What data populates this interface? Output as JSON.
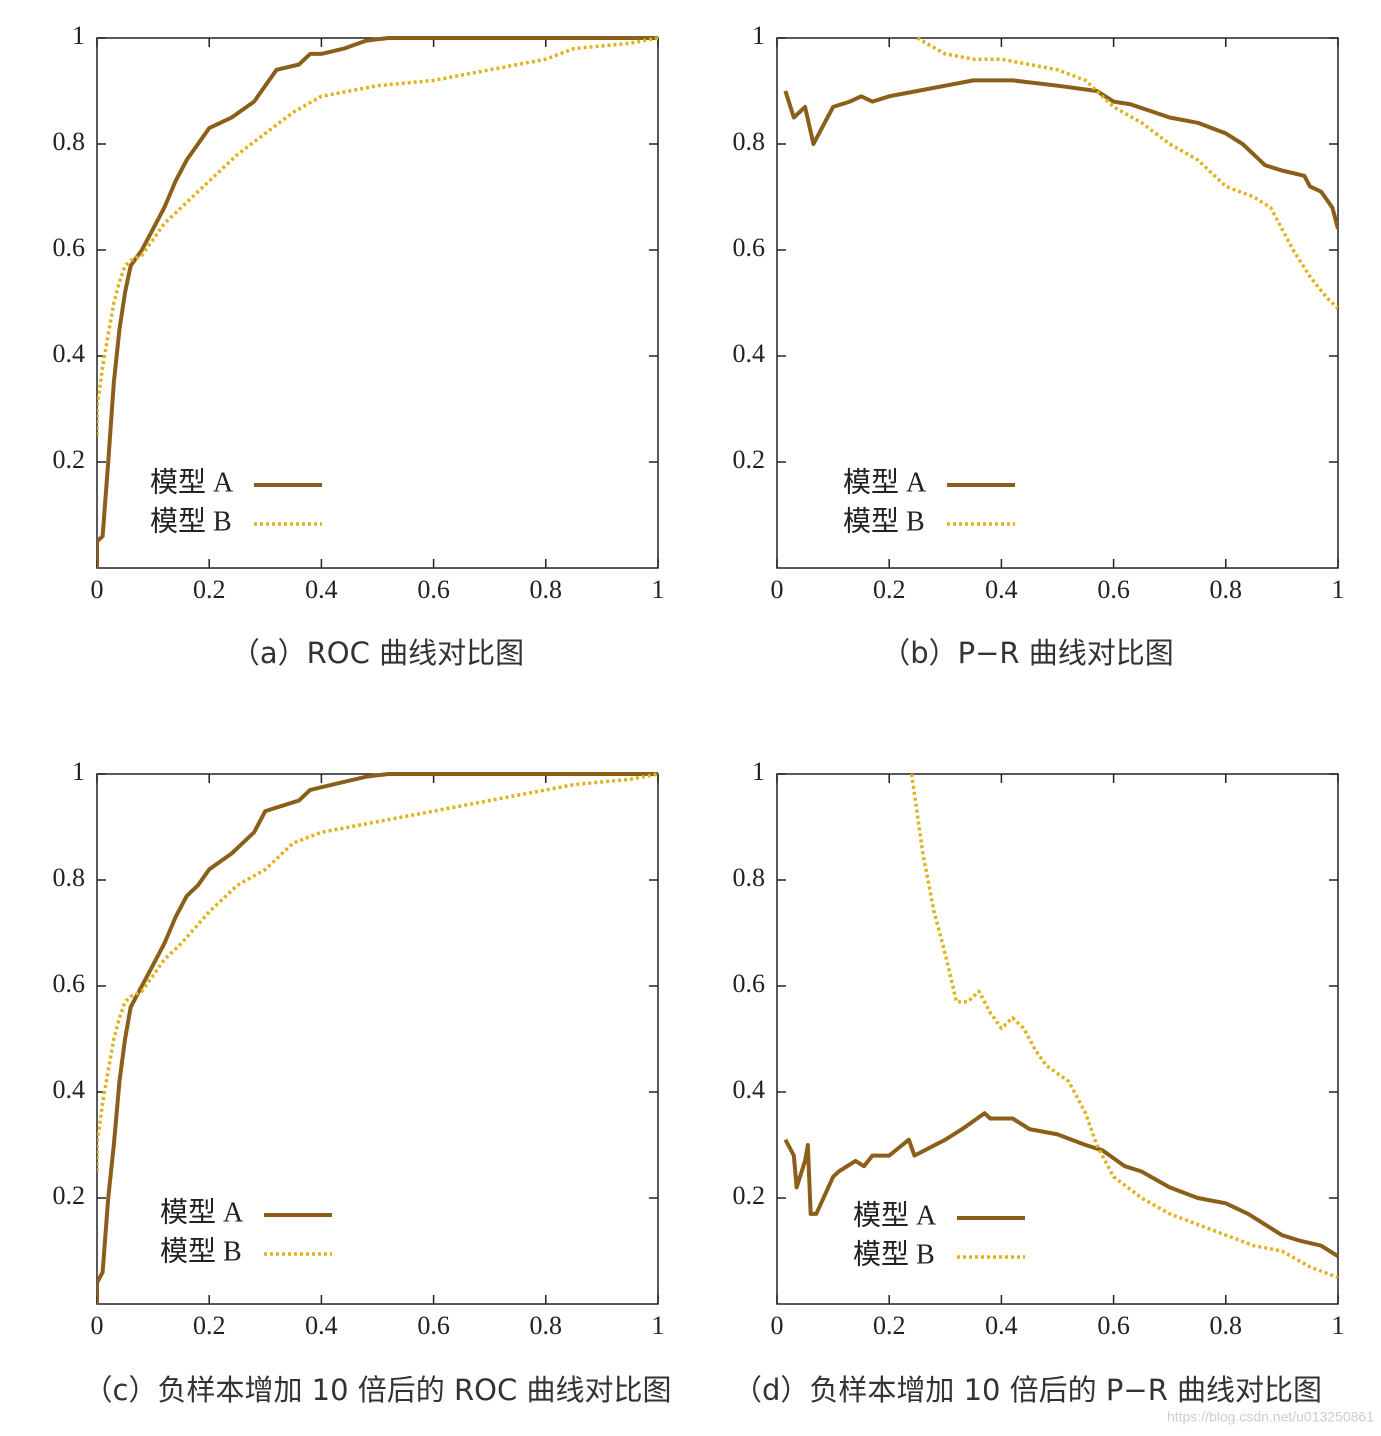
{
  "chart_data": [
    {
      "type": "line",
      "title": "（a）ROC 曲线对比图",
      "xlim": [
        0,
        1
      ],
      "ylim": [
        0,
        1
      ],
      "xticks": [
        0,
        0.2,
        0.4,
        0.6,
        0.8,
        1
      ],
      "yticks": [
        0.2,
        0.4,
        0.6,
        0.8,
        1
      ],
      "legend": "lower left",
      "series": [
        {
          "name": "模型 A",
          "color": "#8b5e1a",
          "line_style": "solid",
          "x": [
            0,
            0,
            0.01,
            0.02,
            0.03,
            0.04,
            0.05,
            0.06,
            0.08,
            0.1,
            0.12,
            0.14,
            0.16,
            0.18,
            0.2,
            0.24,
            0.28,
            0.32,
            0.36,
            0.38,
            0.4,
            0.44,
            0.48,
            0.52,
            0.6,
            0.8,
            1
          ],
          "values": [
            0,
            0.05,
            0.06,
            0.2,
            0.35,
            0.45,
            0.52,
            0.57,
            0.6,
            0.64,
            0.68,
            0.73,
            0.77,
            0.8,
            0.83,
            0.85,
            0.88,
            0.94,
            0.95,
            0.97,
            0.97,
            0.98,
            0.995,
            1,
            1,
            1,
            1
          ]
        },
        {
          "name": "模型 B",
          "color": "#e0b31c",
          "line_style": "dotted",
          "x": [
            0,
            0,
            0.01,
            0.02,
            0.03,
            0.04,
            0.05,
            0.06,
            0.08,
            0.1,
            0.12,
            0.15,
            0.2,
            0.25,
            0.3,
            0.35,
            0.4,
            0.45,
            0.5,
            0.6,
            0.7,
            0.8,
            0.85,
            0.9,
            0.95,
            1
          ],
          "values": [
            0.25,
            0.3,
            0.38,
            0.44,
            0.5,
            0.54,
            0.57,
            0.58,
            0.59,
            0.62,
            0.65,
            0.68,
            0.73,
            0.78,
            0.82,
            0.86,
            0.89,
            0.9,
            0.91,
            0.92,
            0.94,
            0.96,
            0.98,
            0.985,
            0.99,
            1
          ]
        }
      ]
    },
    {
      "type": "line",
      "title": "（b）P−R 曲线对比图",
      "xlim": [
        0,
        1
      ],
      "ylim": [
        0,
        1
      ],
      "xticks": [
        0,
        0.2,
        0.4,
        0.6,
        0.8,
        1
      ],
      "yticks": [
        0.2,
        0.4,
        0.6,
        0.8,
        1
      ],
      "legend": "lower left",
      "series": [
        {
          "name": "模型 A",
          "color": "#8b5e1a",
          "line_style": "solid",
          "x": [
            0.015,
            0.03,
            0.05,
            0.065,
            0.1,
            0.13,
            0.15,
            0.17,
            0.2,
            0.25,
            0.3,
            0.35,
            0.42,
            0.5,
            0.57,
            0.6,
            0.63,
            0.7,
            0.75,
            0.8,
            0.83,
            0.87,
            0.9,
            0.94,
            0.95,
            0.97,
            0.99,
            1
          ],
          "values": [
            0.9,
            0.85,
            0.87,
            0.8,
            0.87,
            0.88,
            0.89,
            0.88,
            0.89,
            0.9,
            0.91,
            0.92,
            0.92,
            0.91,
            0.9,
            0.88,
            0.875,
            0.85,
            0.84,
            0.82,
            0.8,
            0.76,
            0.75,
            0.74,
            0.72,
            0.71,
            0.68,
            0.64
          ]
        },
        {
          "name": "模型 B",
          "color": "#e0b31c",
          "line_style": "dotted",
          "x": [
            0.25,
            0.3,
            0.35,
            0.4,
            0.45,
            0.5,
            0.55,
            0.58,
            0.6,
            0.65,
            0.7,
            0.75,
            0.8,
            0.85,
            0.88,
            0.9,
            0.92,
            0.95,
            0.98,
            1
          ],
          "values": [
            1,
            0.97,
            0.96,
            0.96,
            0.95,
            0.94,
            0.92,
            0.89,
            0.87,
            0.84,
            0.8,
            0.77,
            0.72,
            0.7,
            0.68,
            0.64,
            0.6,
            0.55,
            0.51,
            0.49
          ]
        }
      ]
    },
    {
      "type": "line",
      "title": "（c）负样本增加 10 倍后的 ROC 曲线对比图",
      "xlim": [
        0,
        1
      ],
      "ylim": [
        0,
        1
      ],
      "xticks": [
        0,
        0.2,
        0.4,
        0.6,
        0.8,
        1
      ],
      "yticks": [
        0.2,
        0.4,
        0.6,
        0.8,
        1
      ],
      "legend": "lower left",
      "series": [
        {
          "name": "模型 A",
          "color": "#8b5e1a",
          "line_style": "solid",
          "x": [
            0,
            0,
            0.01,
            0.02,
            0.03,
            0.04,
            0.05,
            0.06,
            0.08,
            0.1,
            0.12,
            0.14,
            0.16,
            0.18,
            0.2,
            0.24,
            0.28,
            0.3,
            0.33,
            0.36,
            0.38,
            0.42,
            0.48,
            0.52,
            0.6,
            0.8,
            1
          ],
          "values": [
            0,
            0.04,
            0.06,
            0.2,
            0.3,
            0.42,
            0.5,
            0.56,
            0.6,
            0.64,
            0.68,
            0.73,
            0.77,
            0.79,
            0.82,
            0.85,
            0.89,
            0.93,
            0.94,
            0.95,
            0.97,
            0.98,
            0.995,
            1,
            1,
            1,
            1
          ]
        },
        {
          "name": "模型 B",
          "color": "#e0b31c",
          "line_style": "dotted",
          "x": [
            0,
            0,
            0.01,
            0.02,
            0.03,
            0.04,
            0.05,
            0.06,
            0.08,
            0.1,
            0.12,
            0.15,
            0.2,
            0.25,
            0.3,
            0.35,
            0.4,
            0.45,
            0.5,
            0.6,
            0.7,
            0.8,
            0.85,
            0.9,
            0.95,
            1
          ],
          "values": [
            0.25,
            0.3,
            0.38,
            0.44,
            0.5,
            0.54,
            0.57,
            0.58,
            0.59,
            0.62,
            0.65,
            0.68,
            0.74,
            0.79,
            0.82,
            0.87,
            0.89,
            0.9,
            0.91,
            0.93,
            0.95,
            0.97,
            0.98,
            0.985,
            0.99,
            1
          ]
        }
      ]
    },
    {
      "type": "line",
      "title": "（d）负样本增加 10 倍后的 P−R 曲线对比图",
      "xlim": [
        0,
        1
      ],
      "ylim": [
        0,
        1
      ],
      "xticks": [
        0,
        0.2,
        0.4,
        0.6,
        0.8,
        1
      ],
      "yticks": [
        0.2,
        0.4,
        0.6,
        0.8,
        1
      ],
      "legend": "lower left",
      "series": [
        {
          "name": "模型 A",
          "color": "#8b5e1a",
          "line_style": "solid",
          "x": [
            0.015,
            0.03,
            0.035,
            0.05,
            0.055,
            0.06,
            0.07,
            0.1,
            0.11,
            0.14,
            0.155,
            0.17,
            0.2,
            0.235,
            0.245,
            0.3,
            0.33,
            0.37,
            0.38,
            0.42,
            0.45,
            0.5,
            0.55,
            0.58,
            0.62,
            0.65,
            0.7,
            0.75,
            0.8,
            0.84,
            0.9,
            0.93,
            0.97,
            1
          ],
          "values": [
            0.31,
            0.28,
            0.22,
            0.27,
            0.3,
            0.17,
            0.17,
            0.24,
            0.25,
            0.27,
            0.26,
            0.28,
            0.28,
            0.31,
            0.28,
            0.31,
            0.33,
            0.36,
            0.35,
            0.35,
            0.33,
            0.32,
            0.3,
            0.29,
            0.26,
            0.25,
            0.22,
            0.2,
            0.19,
            0.17,
            0.13,
            0.12,
            0.11,
            0.09
          ]
        },
        {
          "name": "模型 B",
          "color": "#e0b31c",
          "line_style": "dotted",
          "x": [
            0.24,
            0.26,
            0.28,
            0.3,
            0.32,
            0.34,
            0.36,
            0.38,
            0.4,
            0.42,
            0.44,
            0.46,
            0.48,
            0.52,
            0.55,
            0.57,
            0.6,
            0.65,
            0.7,
            0.8,
            0.85,
            0.9,
            0.95,
            1
          ],
          "values": [
            1,
            0.85,
            0.74,
            0.66,
            0.57,
            0.57,
            0.59,
            0.55,
            0.52,
            0.54,
            0.52,
            0.48,
            0.45,
            0.42,
            0.36,
            0.3,
            0.24,
            0.2,
            0.17,
            0.13,
            0.11,
            0.1,
            0.07,
            0.05
          ]
        }
      ]
    }
  ],
  "watermark": "https://blog.csdn.net/u013250861"
}
